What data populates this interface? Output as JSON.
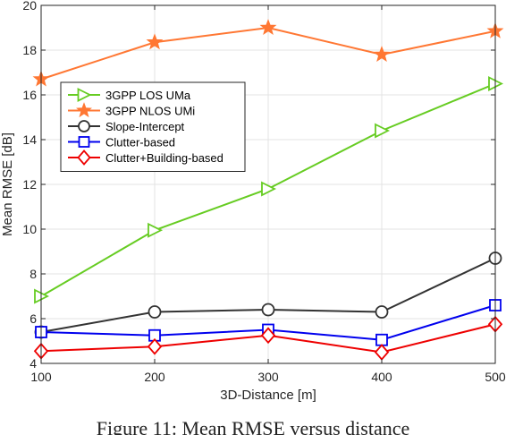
{
  "chart_data": {
    "type": "line",
    "xlabel": "3D-Distance [m]",
    "ylabel": "Mean RMSE [dB]",
    "x": [
      100,
      200,
      300,
      400,
      500
    ],
    "xlim": [
      100,
      500
    ],
    "ylim": [
      4,
      20
    ],
    "xticks": [
      "100",
      "200",
      "300",
      "400",
      "500"
    ],
    "yticks": [
      "4",
      "6",
      "8",
      "10",
      "12",
      "14",
      "16",
      "18",
      "20"
    ],
    "grid": true,
    "legend_position": "upper-left",
    "series": [
      {
        "name": "3GPP LOS UMa",
        "color": "#66cc22",
        "marker": "triangle-right",
        "values": [
          7.0,
          9.95,
          11.8,
          14.4,
          16.5
        ]
      },
      {
        "name": "3GPP NLOS UMi",
        "color": "#ff7733",
        "marker": "star",
        "values": [
          16.7,
          18.35,
          19.0,
          17.8,
          18.85
        ]
      },
      {
        "name": "Slope-Intercept",
        "color": "#333333",
        "marker": "circle",
        "values": [
          5.4,
          6.3,
          6.4,
          6.3,
          8.7
        ]
      },
      {
        "name": "Clutter-based",
        "color": "#0000ee",
        "marker": "square",
        "values": [
          5.4,
          5.25,
          5.5,
          5.05,
          6.6
        ]
      },
      {
        "name": "Clutter+Building-based",
        "color": "#ee0000",
        "marker": "diamond",
        "values": [
          4.55,
          4.75,
          5.25,
          4.5,
          5.75
        ]
      }
    ]
  },
  "caption": "Figure 11: Mean RMSE versus distance"
}
